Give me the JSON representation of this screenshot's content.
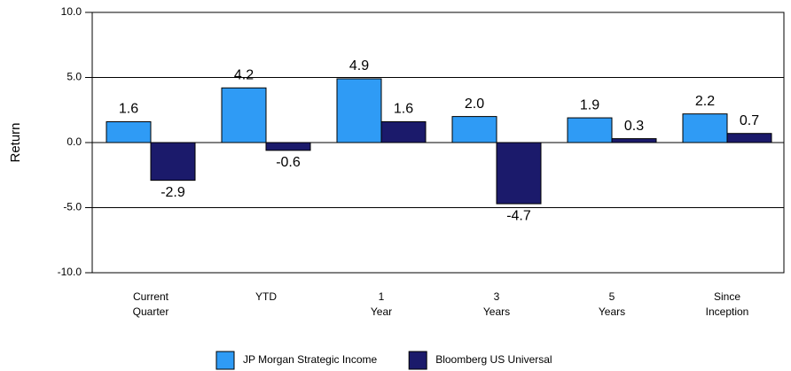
{
  "chart_data": {
    "type": "bar",
    "y_label": "Return",
    "categories": [
      [
        "Current",
        "Quarter"
      ],
      [
        "YTD"
      ],
      [
        "1",
        "Year"
      ],
      [
        "3",
        "Years"
      ],
      [
        "5",
        "Years"
      ],
      [
        "Since",
        "Inception"
      ]
    ],
    "series": [
      {
        "name": "JP Morgan Strategic Income",
        "color": "#2f9bf5",
        "values": [
          1.6,
          4.2,
          4.9,
          2.0,
          1.9,
          2.2
        ],
        "value_labels": [
          "1.6",
          "4.2",
          "4.9",
          "2.0",
          "1.9",
          "2.2"
        ]
      },
      {
        "name": "Bloomberg US Universal",
        "color": "#1b1a6b",
        "values": [
          -2.9,
          -0.6,
          1.6,
          -4.7,
          0.3,
          0.7
        ],
        "value_labels": [
          "-2.9",
          "-0.6",
          "1.6",
          "-4.7",
          "0.3",
          "0.7"
        ]
      }
    ],
    "ylim": [
      -10,
      10
    ],
    "yticks": [
      {
        "value": -10,
        "label": "-10.0"
      },
      {
        "value": -5,
        "label": "-5.0"
      },
      {
        "value": 0,
        "label": "0.0"
      },
      {
        "value": 5,
        "label": "5.0"
      },
      {
        "value": 10,
        "label": "10.0"
      }
    ],
    "grid": true
  }
}
